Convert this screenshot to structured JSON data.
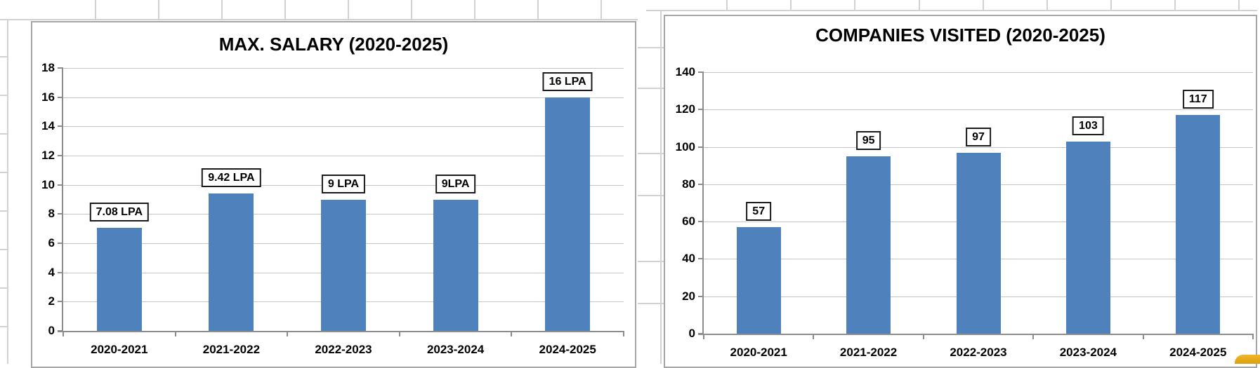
{
  "sheet": {
    "gridline_color": "#d2d2d2"
  },
  "chart_data": [
    {
      "type": "bar",
      "title": "MAX. SALARY (2020-2025)",
      "categories": [
        "2020-2021",
        "2021-2022",
        "2022-2023",
        "2023-2024",
        "2024-2025"
      ],
      "values": [
        7.08,
        9.42,
        9,
        9,
        16
      ],
      "bar_labels": [
        "7.08 LPA",
        "9.42 LPA",
        "9 LPA",
        "9LPA",
        "16 LPA"
      ],
      "ytick_labels": [
        "18",
        "16",
        "14",
        "12",
        "10",
        "8",
        "6",
        "4",
        "2",
        "0"
      ],
      "ylim": [
        0,
        18
      ],
      "ytick_step": 2,
      "xlabel": "",
      "ylabel": "",
      "grid": "horizontal",
      "legend": "none",
      "bar_color": "#4f81bd",
      "border_color": "#a6a6a6"
    },
    {
      "type": "bar",
      "title": "COMPANIES VISITED (2020-2025)",
      "categories": [
        "2020-2021",
        "2021-2022",
        "2022-2023",
        "2023-2024",
        "2024-2025"
      ],
      "values": [
        57,
        95,
        97,
        103,
        117
      ],
      "bar_labels": [
        "57",
        "95",
        "97",
        "103",
        "117"
      ],
      "ytick_labels": [
        "140",
        "120",
        "100",
        "80",
        "60",
        "40",
        "20",
        "0"
      ],
      "ylim": [
        0,
        140
      ],
      "ytick_step": 20,
      "xlabel": "",
      "ylabel": "",
      "grid": "horizontal",
      "legend": "none",
      "bar_color": "#4f81bd",
      "border_color": "#a6a6a6"
    }
  ],
  "badge": {
    "label": "yellow-rounded-corner",
    "color": "#e9ac1d"
  }
}
